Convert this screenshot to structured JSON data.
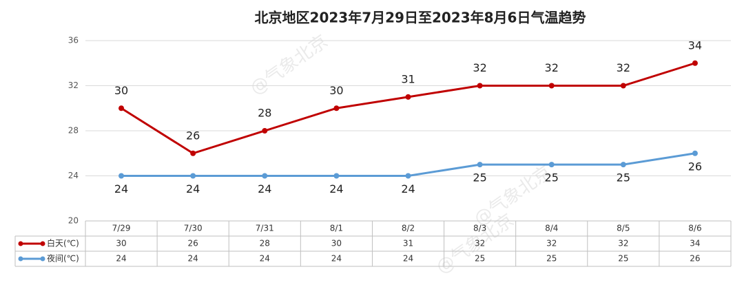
{
  "chart_data": {
    "type": "line",
    "title": "北京地区2023年7月29日至2023年8月6日气温趋势",
    "categories": [
      "7/29",
      "7/30",
      "7/31",
      "8/1",
      "8/2",
      "8/3",
      "8/4",
      "8/5",
      "8/6"
    ],
    "series": [
      {
        "name": "白天(℃)",
        "color": "#c00000",
        "values": [
          30,
          26,
          28,
          30,
          31,
          32,
          32,
          32,
          34
        ]
      },
      {
        "name": "夜间(℃)",
        "color": "#5b9bd5",
        "values": [
          24,
          24,
          24,
          24,
          24,
          25,
          25,
          25,
          26
        ]
      }
    ],
    "ylim": [
      20,
      36
    ],
    "yticks": [
      20,
      24,
      28,
      32,
      36
    ],
    "grid": true,
    "watermark": "@气象北京"
  }
}
